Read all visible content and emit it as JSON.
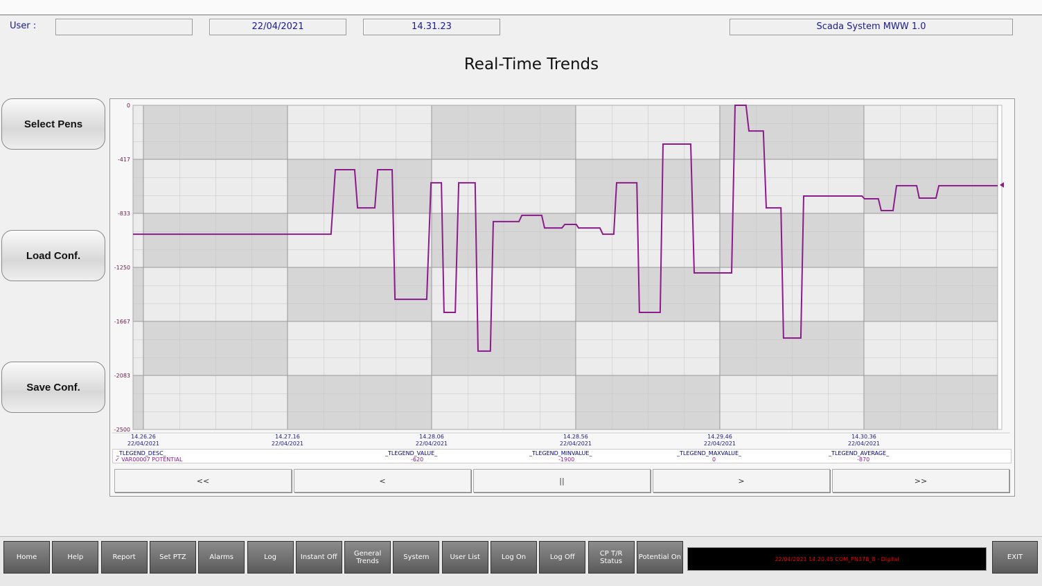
{
  "header": {
    "user_label": "User :",
    "user": "",
    "date": "22/04/2021",
    "time": "14.31.23",
    "system": "Scada System MWW 1.0"
  },
  "title": "Real-Time Trends",
  "side_buttons": [
    "Select Pens",
    "Load Conf.",
    "Save Conf."
  ],
  "legend": {
    "headers": [
      "_TLEGEND_DESC_",
      "_TLEGEND_VALUE_",
      "_TLEGEND_MINVALUE_",
      "_TLEGEND_MAXVALUE_",
      "_TLEGEND_AVERAGE_"
    ],
    "pen": "VAR00007  POTENTIAL",
    "value": -620,
    "min": -1900,
    "max": 0,
    "average": -870
  },
  "nav_buttons": [
    "<<",
    "<",
    "||",
    ">",
    ">>"
  ],
  "bottom_buttons": [
    "Home",
    "Help",
    "Report",
    "Set PTZ",
    "Alarms",
    "Log",
    "Instant Off",
    "General Trends",
    "System",
    "User List",
    "Log On",
    "Log Off",
    "CP T/R Status",
    "Potential On"
  ],
  "alarm": "22/04/2021 14.20.45 COM_PN37B_8 - Digital",
  "exit": "EXIT",
  "chart_data": {
    "type": "line",
    "x_date": "22/04/2021",
    "xlim": [
      51982.4,
      52282.4
    ],
    "xticks": [
      {
        "value": 51986,
        "label": "14.26.26"
      },
      {
        "value": 52036,
        "label": "14.27.16"
      },
      {
        "value": 52086,
        "label": "14.28.06"
      },
      {
        "value": 52136,
        "label": "14.28.56"
      },
      {
        "value": 52186,
        "label": "14.29.46"
      },
      {
        "value": 52236,
        "label": "14.30.36"
      }
    ],
    "ylim": [
      -2500,
      0
    ],
    "yticks": [
      0,
      -417,
      -833,
      -1250,
      -1667,
      -2083,
      -2500
    ],
    "grid": true,
    "series": [
      {
        "name": "VAR00007  POTENTIAL",
        "color": "#8b1a8b",
        "x": [
          51982.4,
          52051.1,
          52052.6,
          52059.3,
          52060.3,
          52066.3,
          52067.3,
          52072.3,
          52073.3,
          52084.3,
          52085.8,
          52089.4,
          52090.3,
          52094.2,
          52095.4,
          52101.1,
          52102.1,
          52106.4,
          52107.4,
          52116.3,
          52117.3,
          52124.2,
          52125.2,
          52131.2,
          52132.2,
          52136.2,
          52137.0,
          52144.4,
          52145.4,
          52149.2,
          52150.2,
          52157.2,
          52158.1,
          52165.3,
          52166.3,
          52175.9,
          52177.1,
          52190.1,
          52191.3,
          52195.1,
          52196.1,
          52201.1,
          52202.1,
          52207.2,
          52208.1,
          52214.1,
          52215.1,
          52235.3,
          52236.2,
          52241.0,
          52242.0,
          52246.1,
          52247.3,
          52254.3,
          52255.2,
          52261.0,
          52262.0,
          52282.4
        ],
        "values": [
          -994,
          -994,
          -497,
          -497,
          -791,
          -791,
          -497,
          -497,
          -1496,
          -1496,
          -598,
          -598,
          -1597,
          -1597,
          -598,
          -598,
          -1896,
          -1896,
          -897,
          -897,
          -849,
          -849,
          -946,
          -946,
          -919,
          -919,
          -946,
          -946,
          -994,
          -994,
          -598,
          -598,
          -1597,
          -1597,
          -299,
          -299,
          -1293,
          -1293,
          0,
          0,
          -198,
          -198,
          -791,
          -791,
          -1795,
          -1795,
          -700,
          -700,
          -721,
          -721,
          -812,
          -812,
          -620,
          -620,
          -716,
          -716,
          -620,
          -620
        ]
      }
    ]
  }
}
